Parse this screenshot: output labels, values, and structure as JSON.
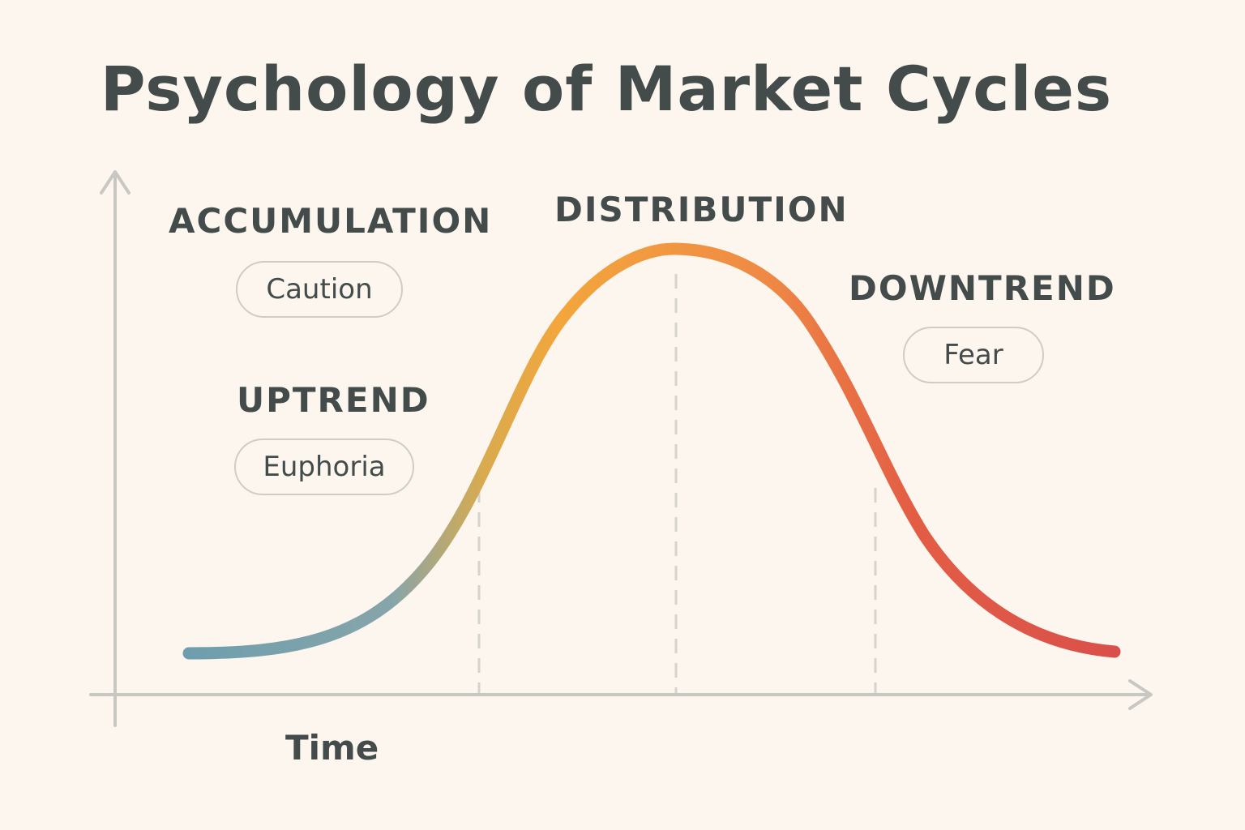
{
  "title": "Psychology of Market Cycles",
  "x_axis_label": "Time",
  "phases": [
    {
      "name": "ACCUMULATION",
      "emotion": "Caution"
    },
    {
      "name": "UPTREND",
      "emotion": "Euphoria"
    },
    {
      "name": "DISTRIBUTION"
    },
    {
      "name": "DOWNTREND",
      "emotion": "Fear"
    }
  ],
  "colors": {
    "background": "#fcf6ef",
    "text": "#434b4b",
    "axis": "#c9c7c2",
    "curve_start": "#6e9eae",
    "curve_mid": "#f3a63c",
    "curve_end": "#d9504a"
  }
}
